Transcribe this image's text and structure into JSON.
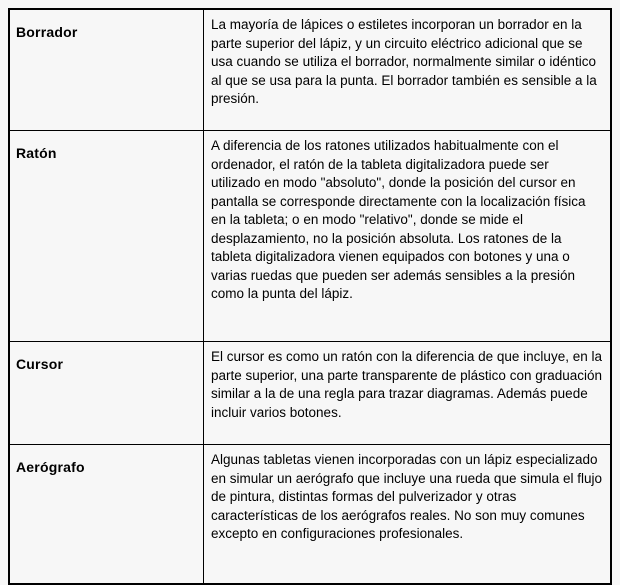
{
  "table": {
    "rows": [
      {
        "term": "Borrador",
        "description": "La mayoría de lápices o estiletes incorporan un borrador en la parte superior del lápiz, y un circuito eléctrico adicional que se usa cuando se utiliza el borrador, normalmente similar o idéntico al que se usa para la punta. El borrador también es sensible a la presión."
      },
      {
        "term": "Ratón",
        "description": "A diferencia de los ratones utilizados habitualmente con el ordenador, el ratón de la tableta digitalizadora puede ser utilizado en modo \"absoluto\", donde la posición del cursor en pantalla se corresponde directamente con la localización física en la tableta; o en modo \"relativo\", donde se mide el desplazamiento, no la posición absoluta. Los ratones de la tableta digitalizadora vienen equipados con botones y una o varias ruedas que pueden ser además sensibles a la presión como la punta del lápiz."
      },
      {
        "term": "Cursor",
        "description": "El cursor es como un ratón con la diferencia de que incluye, en la parte superior, una parte transparente de plástico con graduación similar a la de una regla para trazar diagramas. Además puede incluir varios botones."
      },
      {
        "term": "Aerógrafo",
        "description": "Algunas tabletas vienen incorporadas con un lápiz especializado en simular un aerógrafo que incluye una rueda que simula el flujo de pintura, distintas formas del pulverizador y otras características de los aerógrafos reales. No son muy comunes excepto en configuraciones profesionales."
      }
    ]
  },
  "colors": {
    "border": "#000000",
    "background": "#f7f7f7",
    "text": "#000000"
  }
}
